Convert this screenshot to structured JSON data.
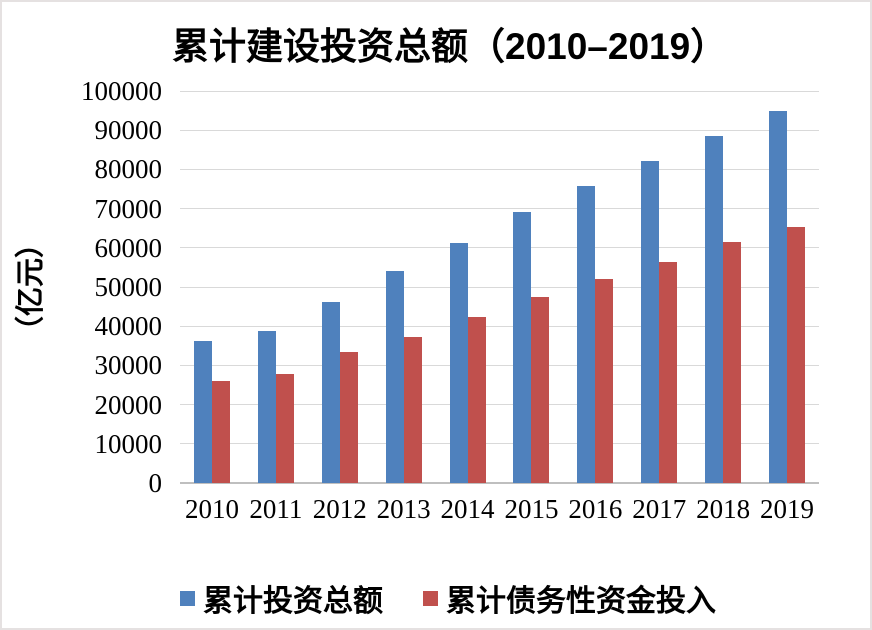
{
  "title": "累计建设投资总额（2010–2019）",
  "y_axis_label": "（亿元）",
  "colors": {
    "series_investment": "#4f81bd",
    "series_debt": "#c0504d",
    "gridline": "#d9d9d9",
    "axis_line": "#bfbfbf",
    "text": "#000000",
    "background": "#ffffff",
    "frame_border": "#e5e1e1"
  },
  "legend": {
    "items": [
      {
        "label": "累计投资总额",
        "color": "#4f81bd"
      },
      {
        "label": "累计债务性资金投入",
        "color": "#c0504d"
      }
    ]
  },
  "chart_data": {
    "type": "bar",
    "title": "累计建设投资总额（2010–2019）",
    "ylabel": "（亿元）",
    "xlabel": "",
    "categories": [
      "2010",
      "2011",
      "2012",
      "2013",
      "2014",
      "2015",
      "2016",
      "2017",
      "2018",
      "2019"
    ],
    "series": [
      {
        "name": "累计投资总额",
        "color": "#4f81bd",
        "values": [
          36300,
          38800,
          46200,
          54200,
          61300,
          69200,
          75800,
          82100,
          88600,
          95000
        ]
      },
      {
        "name": "累计债务性资金投入",
        "color": "#c0504d",
        "values": [
          25900,
          27900,
          33400,
          37300,
          42400,
          47500,
          52100,
          56400,
          61600,
          65200
        ]
      }
    ],
    "ylim": [
      0,
      100000
    ],
    "ytick_step": 10000,
    "yticks": [
      0,
      10000,
      20000,
      30000,
      40000,
      50000,
      60000,
      70000,
      80000,
      90000,
      100000
    ],
    "grid": true,
    "legend_position": "bottom"
  }
}
